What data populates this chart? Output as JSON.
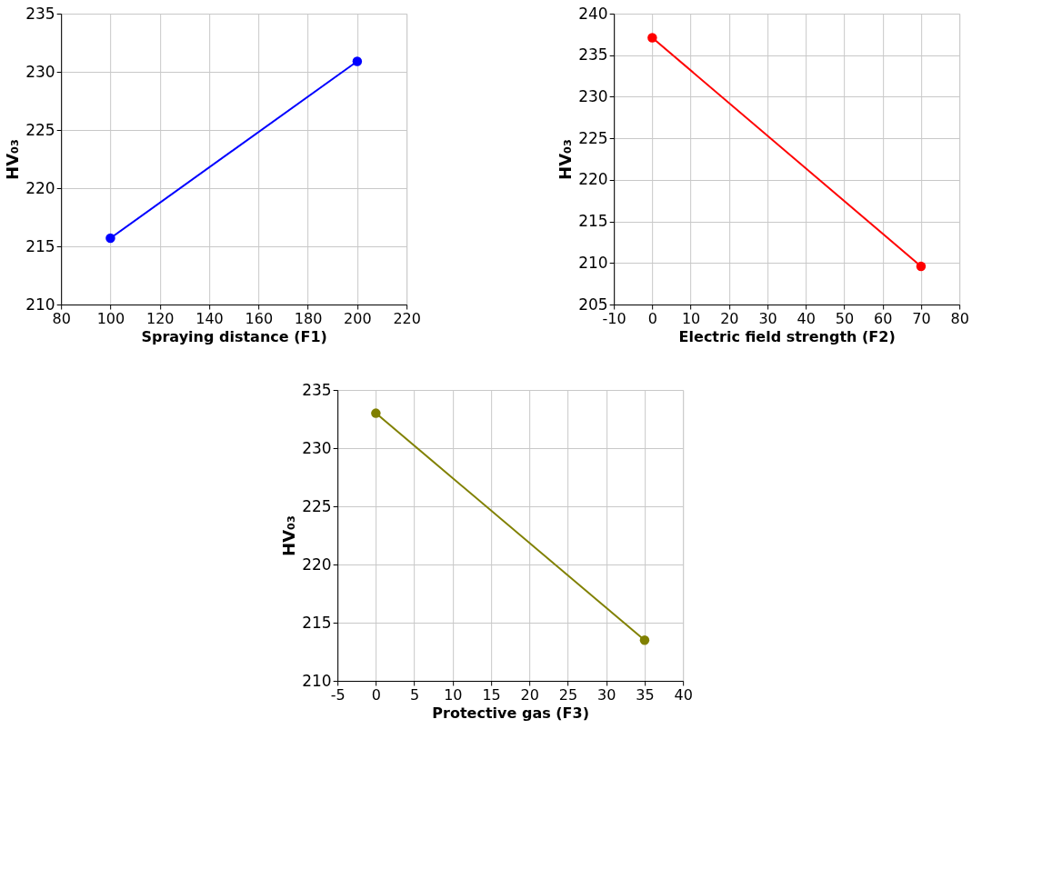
{
  "chart_data": [
    {
      "type": "line",
      "xlabel": "Spraying distance (F1)",
      "ylabel": "HV₀₃",
      "x": [
        100,
        200
      ],
      "xlim": [
        80,
        220
      ],
      "xticks": [
        80,
        100,
        120,
        140,
        160,
        180,
        200,
        220
      ],
      "ylim": [
        210,
        235
      ],
      "yticks": [
        210,
        215,
        220,
        225,
        230,
        235
      ],
      "grid": true,
      "marker": "circle",
      "line_style": "solid",
      "series": [
        {
          "color": "#0000ff",
          "values": [
            215.7,
            230.9
          ]
        }
      ]
    },
    {
      "type": "line",
      "xlabel": "Electric field strength (F2)",
      "ylabel": "HV₀₃",
      "x": [
        0,
        70
      ],
      "xlim": [
        -10,
        80
      ],
      "xticks": [
        -10,
        0,
        10,
        20,
        30,
        40,
        50,
        60,
        70,
        80
      ],
      "ylim": [
        205,
        240
      ],
      "yticks": [
        205,
        210,
        215,
        220,
        225,
        230,
        235,
        240
      ],
      "grid": true,
      "marker": "circle",
      "line_style": "solid",
      "series": [
        {
          "color": "#ff0000",
          "values": [
            237.1,
            209.6
          ]
        }
      ]
    },
    {
      "type": "line",
      "xlabel": "Protective gas (F3)",
      "ylabel": "HV₀₃",
      "x": [
        0,
        35
      ],
      "xlim": [
        -5,
        40
      ],
      "xticks": [
        -5,
        0,
        5,
        10,
        15,
        20,
        25,
        30,
        35,
        40
      ],
      "ylim": [
        210,
        235
      ],
      "yticks": [
        210,
        215,
        220,
        225,
        230,
        235
      ],
      "grid": true,
      "marker": "circle",
      "line_style": "solid",
      "series": [
        {
          "color": "#808000",
          "values": [
            233.0,
            213.5
          ]
        }
      ]
    }
  ]
}
